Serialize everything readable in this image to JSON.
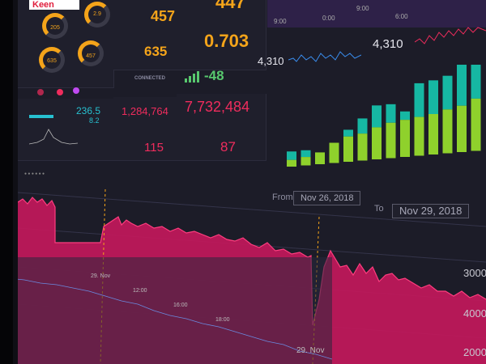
{
  "brand": {
    "label": "Keen"
  },
  "gauges": [
    {
      "value": "205"
    },
    {
      "value": "2.9"
    },
    {
      "value": "635"
    },
    {
      "value": "457"
    }
  ],
  "tiles": {
    "t457": "457",
    "t447": "447",
    "t635": "635",
    "t0703": "0.703",
    "connected": "CONNECTED",
    "neg48": "-48",
    "v2365": "236.5",
    "v82": "8.2",
    "v1284764": "1,284,764",
    "v7732484": "7,732,484",
    "v115": "115",
    "v87": "87",
    "v4310a": "4,310",
    "v4310b": "4,310",
    "t900": "9:00",
    "t000": "0:00",
    "t600": "6:00",
    "t900b": "9:00"
  },
  "range": {
    "from_label": "From",
    "from_value": "Nov 26, 2018",
    "to_label": "To",
    "to_value": "Nov 29, 2018"
  },
  "axis": {
    "y_4000": "4000",
    "y_3000": "3000",
    "y_2000": "2000"
  },
  "timeline": {
    "d29nov_small": "29. Nov",
    "t1200": "12:00",
    "t1600": "16:00",
    "t1800": "18:00",
    "d29nov": "29. Nov"
  },
  "chart_data": {
    "type": "bar",
    "categories": [
      "1",
      "2",
      "3",
      "4",
      "5",
      "6",
      "7",
      "8",
      "9",
      "10",
      "11",
      "12",
      "13",
      "14"
    ],
    "series": [
      {
        "values": [
          8,
          10,
          14,
          24,
          30,
          32,
          38,
          42,
          44,
          46,
          48,
          52,
          55,
          62
        ]
      },
      {
        "values": [
          10,
          8,
          0,
          0,
          8,
          18,
          26,
          22,
          10,
          40,
          40,
          40,
          55,
          60
        ]
      }
    ],
    "colors": [
      "#8fd12c",
      "#16b7a3"
    ]
  }
}
